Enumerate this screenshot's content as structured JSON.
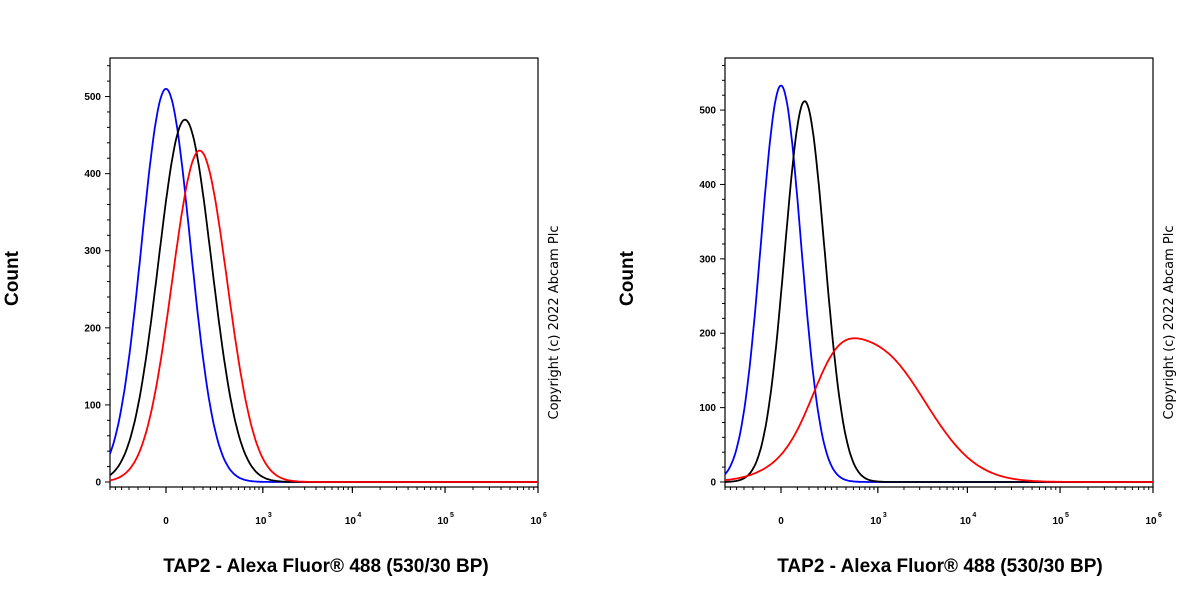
{
  "chart_data": [
    {
      "type": "line",
      "chart_kind": "flow cytometry histogram overlay",
      "xlabel": "TAP2 - Alexa Fluor® 488 (530/30 BP)",
      "ylabel": "Count",
      "x_scale": "biexponential",
      "y_ticks": [
        0,
        100,
        200,
        300,
        400,
        500
      ],
      "ylim": [
        0,
        550
      ],
      "x_ticks": [
        {
          "value": 0,
          "base": "0",
          "exp": ""
        },
        {
          "value": 1000,
          "base": "10",
          "exp": "3"
        },
        {
          "value": 10000,
          "base": "10",
          "exp": "4"
        },
        {
          "value": 100000,
          "base": "10",
          "exp": "5"
        },
        {
          "value": 1000000,
          "base": "10",
          "exp": "6"
        }
      ],
      "annotation": "Copyright (c) 2022 Abcam Plc",
      "series": [
        {
          "color": "#0000ff",
          "peaks": [
            {
              "center": 0,
              "height": 510,
              "width": 0.55
            }
          ]
        },
        {
          "color": "#000000",
          "peaks": [
            {
              "center": 60,
              "height": 470,
              "width": 0.6
            }
          ]
        },
        {
          "color": "#ff0000",
          "peaks": [
            {
              "center": 130,
              "height": 430,
              "width": 0.62
            }
          ]
        }
      ]
    },
    {
      "type": "line",
      "chart_kind": "flow cytometry histogram overlay",
      "xlabel": "TAP2 - Alexa Fluor® 488 (530/30 BP)",
      "ylabel": "Count",
      "x_scale": "biexponential",
      "y_ticks": [
        0,
        100,
        200,
        300,
        400,
        500
      ],
      "ylim": [
        0,
        570
      ],
      "x_ticks": [
        {
          "value": 0,
          "base": "0",
          "exp": ""
        },
        {
          "value": 1000,
          "base": "10",
          "exp": "3"
        },
        {
          "value": 10000,
          "base": "10",
          "exp": "4"
        },
        {
          "value": 100000,
          "base": "10",
          "exp": "5"
        },
        {
          "value": 1000000,
          "base": "10",
          "exp": "6"
        }
      ],
      "annotation": "Copyright (c) 2022 Abcam Plc",
      "series": [
        {
          "color": "#0000ff",
          "peaks": [
            {
              "center": 0,
              "height": 533,
              "width": 0.45
            }
          ]
        },
        {
          "color": "#000000",
          "peaks": [
            {
              "center": 80,
              "height": 512,
              "width": 0.45
            }
          ]
        },
        {
          "color": "#ff0000",
          "peaks": [
            {
              "center": 900,
              "height": 178,
              "width": 1.15
            },
            {
              "center": 260,
              "height": 45,
              "width": 0.5
            }
          ]
        }
      ]
    }
  ]
}
